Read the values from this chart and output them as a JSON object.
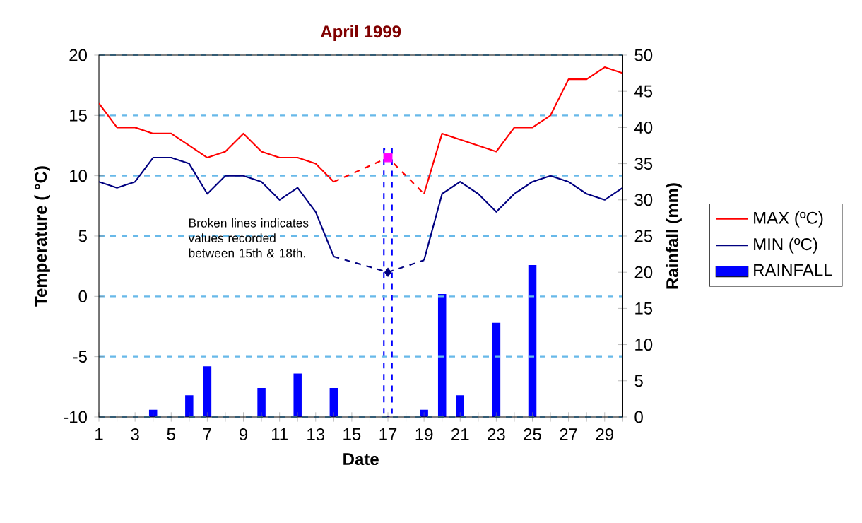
{
  "chart_data": {
    "type": "line",
    "title": "April 1999",
    "xlabel": "Date",
    "ylabel": "Temperature ( °C)",
    "y2label": "Rainfall (mm)",
    "x": [
      1,
      2,
      3,
      4,
      5,
      6,
      7,
      8,
      9,
      10,
      11,
      12,
      13,
      14,
      15,
      16,
      17,
      18,
      19,
      20,
      21,
      22,
      23,
      24,
      25,
      26,
      27,
      28,
      29,
      30
    ],
    "series": [
      {
        "name": "MAX (ºC)",
        "color": "#ff0000",
        "values": [
          16,
          14,
          14,
          13.5,
          13.5,
          12.5,
          11.5,
          12,
          13.5,
          12,
          11.5,
          11.5,
          11,
          9.5,
          null,
          null,
          11.5,
          null,
          8.5,
          13.5,
          13,
          12.5,
          12,
          14,
          14,
          15,
          18,
          18,
          19,
          18.5
        ]
      },
      {
        "name": "MIN (ºC)",
        "color": "#000080",
        "values": [
          9.5,
          9,
          9.5,
          11.5,
          11.5,
          11,
          8.5,
          10,
          10,
          9.5,
          8,
          9,
          7,
          3.3,
          null,
          null,
          2,
          null,
          3,
          8.5,
          9.5,
          8.5,
          7,
          8.5,
          9.5,
          10,
          9.5,
          8.5,
          8,
          9
        ]
      },
      {
        "name": "RAINFALL",
        "type": "bar",
        "axis": "y2",
        "color": "#0000ff",
        "values": [
          0,
          0,
          0,
          1,
          0,
          3,
          7,
          0,
          0,
          4,
          0,
          6,
          0,
          4,
          null,
          null,
          null,
          null,
          1,
          17,
          3,
          0,
          13,
          0,
          21,
          0,
          0,
          0,
          0,
          0
        ]
      },
      {
        "type": "bar",
        "axis": "y2",
        "color": "#0000ff",
        "line_style": "dashed",
        "values": [
          null,
          null,
          null,
          null,
          null,
          null,
          null,
          null,
          null,
          null,
          null,
          null,
          null,
          null,
          null,
          null,
          37,
          null,
          null,
          null,
          null,
          null,
          null,
          null,
          null,
          null,
          null,
          null,
          null,
          null
        ]
      },
      {
        "type": "scatter",
        "color": "#ff00ff",
        "marker": "square",
        "values": [
          null,
          null,
          null,
          null,
          null,
          null,
          null,
          null,
          null,
          null,
          null,
          null,
          null,
          null,
          null,
          null,
          11.5,
          null,
          null,
          null,
          null,
          null,
          null,
          null,
          null,
          null,
          null,
          null,
          null,
          null
        ]
      },
      {
        "type": "scatter",
        "color": "#000080",
        "marker": "diamond",
        "values": [
          null,
          null,
          null,
          null,
          null,
          null,
          null,
          null,
          null,
          null,
          null,
          null,
          null,
          null,
          null,
          null,
          2,
          null,
          null,
          null,
          null,
          null,
          null,
          null,
          null,
          null,
          null,
          null,
          null,
          null
        ]
      }
    ],
    "xlim": [
      1,
      30
    ],
    "xticks": [
      1,
      {
        "value": 2,
        "label": null
      },
      3,
      {
        "value": 4,
        "label": null
      },
      5,
      {
        "value": 6,
        "label": null
      },
      7,
      {
        "value": 8,
        "label": null
      },
      9,
      {
        "value": 10,
        "label": null
      },
      11,
      {
        "value": 12,
        "label": null
      },
      13,
      {
        "value": 14,
        "label": null
      },
      15,
      {
        "value": 16,
        "label": null
      },
      17,
      {
        "value": 18,
        "label": null
      },
      19,
      {
        "value": 20,
        "label": null
      },
      21,
      {
        "value": 22,
        "label": null
      },
      23,
      {
        "value": 24,
        "label": null
      },
      25,
      {
        "value": 26,
        "label": null
      },
      27,
      {
        "value": 28,
        "label": null
      },
      29,
      {
        "value": 30,
        "label": null
      }
    ],
    "ylim": [
      -10,
      20
    ],
    "yticks": [
      -10,
      -5,
      0,
      5,
      10,
      15,
      20
    ],
    "y2lim": [
      0,
      50
    ],
    "y2ticks": [
      0,
      5,
      10,
      15,
      20,
      25,
      30,
      35,
      40,
      45,
      50
    ],
    "grid": "y",
    "legend": "right",
    "annotations": [
      "Broken lines indicates values recorded between 15th & 18th."
    ]
  }
}
